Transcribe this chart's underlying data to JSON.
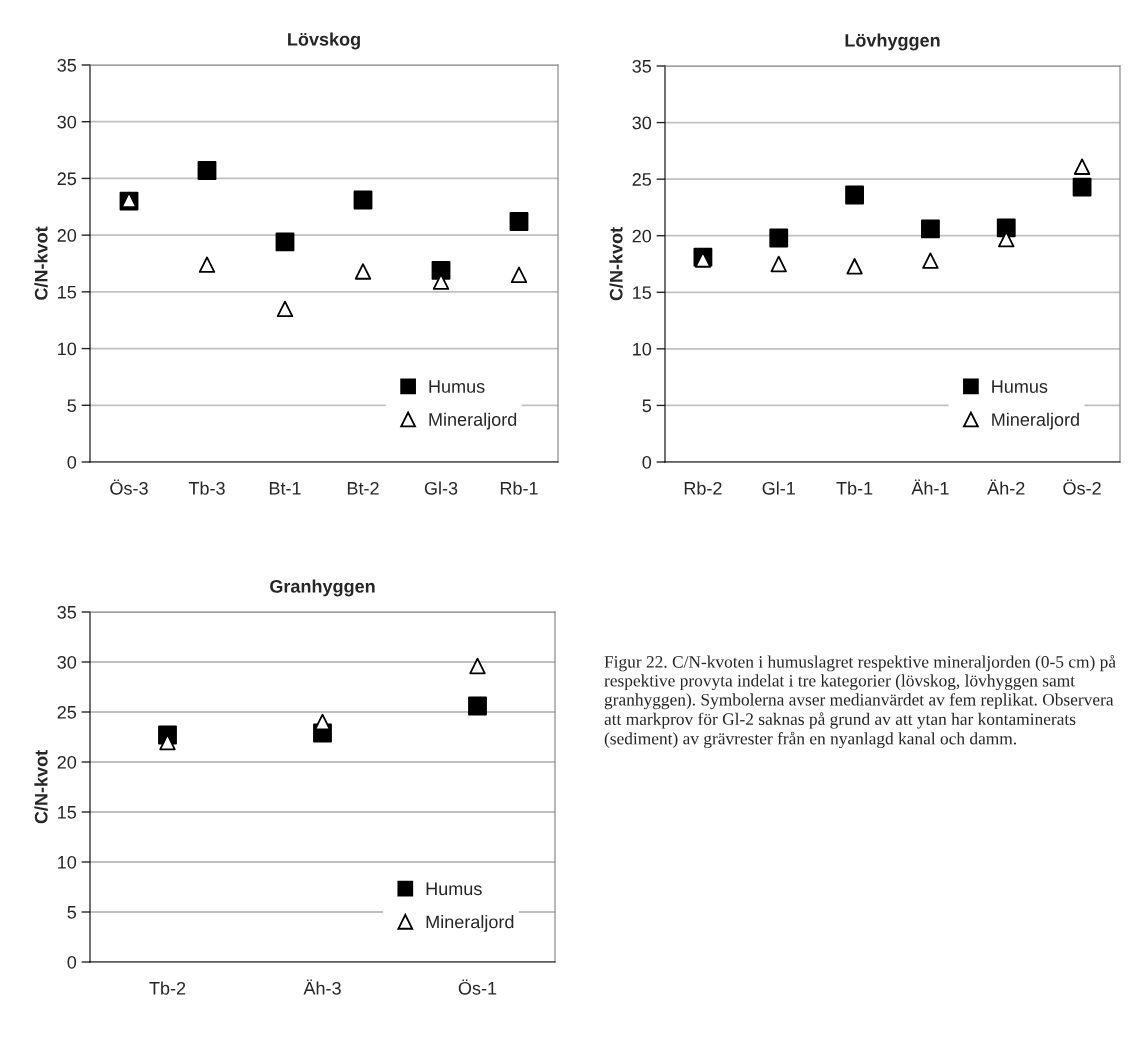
{
  "chart_data": [
    {
      "type": "scatter",
      "title": "Lövskog",
      "ylabel": "C/N-kvot",
      "categories": [
        "Ös-3",
        "Tb-3",
        "Bt-1",
        "Bt-2",
        "Gl-3",
        "Rb-1"
      ],
      "series": [
        {
          "name": "Humus",
          "color": "#000000",
          "marker": "square",
          "values": [
            23.0,
            25.7,
            19.4,
            23.1,
            16.9,
            21.2
          ]
        },
        {
          "name": "Mineraljord",
          "color": "#ffffff",
          "marker": "triangle",
          "values": [
            23.1,
            17.4,
            13.5,
            16.8,
            15.9,
            16.5
          ]
        }
      ],
      "ylim": [
        0,
        35
      ],
      "yticks": [
        0,
        5,
        10,
        15,
        20,
        25,
        30,
        35
      ],
      "grid": "y",
      "legend": "bottom right"
    },
    {
      "type": "scatter",
      "title": "Lövhyggen",
      "ylabel": "C/N-kvot",
      "categories": [
        "Rb-2",
        "Gl-1",
        "Tb-1",
        "Äh-1",
        "Äh-2",
        "Ös-2"
      ],
      "series": [
        {
          "name": "Humus",
          "color": "#000000",
          "marker": "square",
          "values": [
            18.1,
            19.8,
            23.6,
            20.6,
            20.7,
            24.3
          ]
        },
        {
          "name": "Mineraljord",
          "color": "#ffffff",
          "marker": "triangle",
          "values": [
            17.9,
            17.5,
            17.3,
            17.8,
            19.7,
            26.1
          ]
        }
      ],
      "ylim": [
        0,
        35
      ],
      "yticks": [
        0,
        5,
        10,
        15,
        20,
        25,
        30,
        35
      ],
      "grid": "y",
      "legend": "bottom right"
    },
    {
      "type": "scatter",
      "title": "Granhyggen",
      "ylabel": "C/N-kvot",
      "categories": [
        "Tb-2",
        "Äh-3",
        "Ös-1"
      ],
      "series": [
        {
          "name": "Humus",
          "color": "#000000",
          "marker": "square",
          "values": [
            22.7,
            22.9,
            25.6
          ]
        },
        {
          "name": "Mineraljord",
          "color": "#ffffff",
          "marker": "triangle",
          "values": [
            22.0,
            24.0,
            29.6
          ]
        }
      ],
      "ylim": [
        0,
        35
      ],
      "yticks": [
        0,
        5,
        10,
        15,
        20,
        25,
        30,
        35
      ],
      "grid": "y",
      "legend": "bottom right",
      "annotations": [
        "Figur 22. C/N-kvoten i humuslagret respektive mineraljorden (0-5 cm) på respektive provyta indelat i tre kategorier (lövskog, lövhyggen samt granhyggen). Symbolerna avser medianvärdet av fem replikat. Observera att markprov för Gl-2 saknas på grund av att ytan har kontaminerats (sediment) av grävrester från en nyanlagd kanal och damm."
      ]
    }
  ]
}
